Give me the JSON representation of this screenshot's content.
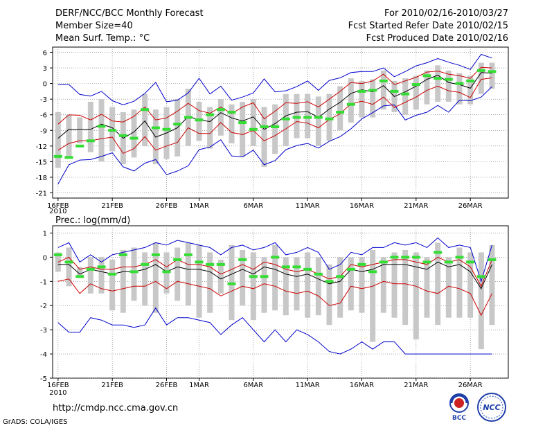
{
  "header": {
    "title": "DERF/NCC/BCC Monthly Forecast",
    "member_size": "Member Size=40",
    "variable": "Mean Surf. Temp.: °C",
    "period": "For 2010/02/16-2010/03/27",
    "start_date": "Fcst Started Refer Date 2010/02/15",
    "produced_date": "Fcst Produced Date 2010/02/16"
  },
  "footer": {
    "url": "http://cmdp.ncc.cma.gov.cn",
    "credit": "GrADS: COLA/IGES",
    "logo_left_text": "BCC",
    "logo_right_text": "NCC"
  },
  "colors": {
    "max_line": "#0000cc",
    "min_line": "#0000cc",
    "spread_line": "#cc0000",
    "mean_line": "#000000",
    "box": "#c8c8c8",
    "forecast_marker": "#33dd33",
    "logo_blue": "#1f3fa8",
    "logo_red": "#cc2222"
  },
  "chart_data": [
    {
      "type": "line",
      "title": "Mean Surf. Temp.: °C",
      "x_tick_labels": [
        "16FEB",
        "21FEB",
        "26FEB",
        "1MAR",
        "6MAR",
        "11MAR",
        "16MAR",
        "21MAR",
        "26MAR"
      ],
      "x_tick_days": [
        0,
        5,
        10,
        13,
        18,
        23,
        28,
        33,
        38
      ],
      "x_sub_label": "2010",
      "ylim": [
        -22,
        7
      ],
      "y_ticks": [
        6,
        3,
        0,
        -3,
        -6,
        -9,
        -12,
        -15,
        -18,
        -21
      ],
      "y_tick_labels": [
        "6",
        "3",
        "0",
        "-3",
        "-6",
        "-9",
        "-12",
        "-15",
        "-18",
        "-21"
      ],
      "series": [
        {
          "name": "max",
          "values": [
            -0.2,
            -0.2,
            -2.1,
            -2.4,
            -1.5,
            -3.3,
            -4.1,
            -3.4,
            -1.9,
            0.2,
            -3.5,
            -3.2,
            -1.8,
            1.0,
            -2.0,
            -0.5,
            -3.2,
            -2.6,
            -1.8,
            0.9,
            -1.6,
            -1.4,
            -0.6,
            0.5,
            -1.3,
            0.6,
            1.1,
            2.1,
            2.3,
            2.3,
            3.0,
            1.3,
            2.3,
            3.4,
            4.0,
            4.8,
            4.1,
            3.5,
            2.7,
            5.6,
            4.9
          ]
        },
        {
          "name": "spread_high",
          "values": [
            -7.8,
            -6.0,
            -6.1,
            -7.0,
            -5.9,
            -7.2,
            -7.4,
            -6.3,
            -4.5,
            -7.0,
            -6.6,
            -5.3,
            -3.8,
            -5.2,
            -5.7,
            -4.5,
            -5.8,
            -4.5,
            -3.7,
            -6.8,
            -5.3,
            -3.7,
            -3.8,
            -3.5,
            -4.5,
            -3.0,
            -1.5,
            0.2,
            0.0,
            0.5,
            1.8,
            -0.2,
            0.5,
            1.2,
            2.2,
            2.4,
            1.8,
            1.5,
            1.0,
            3.1,
            3.0
          ]
        },
        {
          "name": "mean",
          "values": [
            -10.5,
            -8.8,
            -8.8,
            -8.8,
            -7.8,
            -8.5,
            -10.5,
            -9.3,
            -7.2,
            -10.3,
            -9.5,
            -8.5,
            -6.3,
            -7.0,
            -7.3,
            -5.6,
            -6.6,
            -7.2,
            -6.4,
            -8.8,
            -7.7,
            -6.2,
            -5.5,
            -5.4,
            -6.5,
            -4.9,
            -3.6,
            -1.9,
            -1.2,
            -1.6,
            -0.4,
            -2.5,
            -1.6,
            -0.5,
            0.8,
            1.6,
            0.2,
            -0.2,
            -0.9,
            2.1,
            2.0
          ]
        },
        {
          "name": "spread_low",
          "values": [
            -12.8,
            -11.5,
            -11.0,
            -11.0,
            -10.6,
            -10.3,
            -13.4,
            -12.5,
            -10.2,
            -12.8,
            -12.0,
            -11.3,
            -8.5,
            -9.6,
            -9.6,
            -7.5,
            -9.4,
            -9.8,
            -9.0,
            -11.0,
            -10.0,
            -8.7,
            -7.3,
            -7.6,
            -8.5,
            -6.9,
            -5.8,
            -3.9,
            -3.4,
            -4.0,
            -2.6,
            -4.6,
            -3.6,
            -2.6,
            -1.3,
            -0.5,
            -1.4,
            -1.7,
            -2.7,
            0.8,
            1.1
          ]
        },
        {
          "name": "min",
          "values": [
            -19.3,
            -15.6,
            -14.7,
            -14.6,
            -14.0,
            -13.3,
            -16.0,
            -16.8,
            -15.3,
            -14.6,
            -17.5,
            -16.8,
            -15.8,
            -12.7,
            -12.2,
            -10.8,
            -13.9,
            -14.1,
            -12.8,
            -15.6,
            -14.8,
            -12.7,
            -11.9,
            -11.5,
            -12.4,
            -11.1,
            -10.2,
            -8.7,
            -6.8,
            -5.6,
            -4.3,
            -4.1,
            -7.0,
            -6.1,
            -5.5,
            -4.2,
            -5.5,
            -3.2,
            -3.3,
            -2.6,
            -0.6
          ]
        },
        {
          "name": "box_low",
          "values": [
            -16.2,
            -14.0,
            -11.5,
            -13.2,
            -15.0,
            -13.0,
            -15.5,
            -14.2,
            -12.0,
            -15.5,
            -14.5,
            -14.0,
            -12.0,
            -11.0,
            -12.5,
            -10.0,
            -11.5,
            -14.0,
            -12.0,
            -16.0,
            -13.5,
            -12.0,
            -10.5,
            -10.5,
            -12.0,
            -11.0,
            -9.0,
            -7.5,
            -6.5,
            -6.5,
            -5.0,
            -5.5,
            -6.0,
            -5.0,
            -4.0,
            -3.5,
            -3.5,
            -4.0,
            -4.0,
            -2.0,
            -1.0
          ]
        },
        {
          "name": "box_high",
          "values": [
            -5.5,
            -6.0,
            -6.5,
            -3.5,
            -3.0,
            -4.5,
            -5.5,
            -5.0,
            -2.0,
            -5.0,
            -4.5,
            -3.0,
            -1.0,
            -3.5,
            -4.5,
            -3.0,
            -4.0,
            -3.5,
            -3.0,
            -4.5,
            -4.0,
            -2.0,
            -2.0,
            -2.0,
            -2.5,
            -2.0,
            -0.5,
            1.0,
            0.5,
            0.8,
            2.5,
            0.5,
            1.0,
            1.5,
            2.5,
            3.5,
            2.5,
            2.0,
            1.5,
            4.0,
            4.0
          ]
        },
        {
          "name": "forecast",
          "values": [
            -14.0,
            -14.2,
            -12.0,
            -11.0,
            -8.2,
            -9.0,
            -10.0,
            -10.5,
            -5.0,
            -8.5,
            -8.8,
            -7.8,
            -6.5,
            -7.0,
            -6.0,
            -5.0,
            -5.5,
            -7.5,
            -8.8,
            -8.3,
            -8.3,
            -6.8,
            -6.5,
            -6.5,
            -6.5,
            -6.8,
            -5.5,
            -4.0,
            -1.5,
            -1.3,
            0.5,
            -1.5,
            -2.0,
            -0.2,
            1.5,
            1.0,
            0.8,
            0.0,
            0.5,
            2.5,
            2.3
          ]
        }
      ]
    },
    {
      "type": "line",
      "title": "Prec.: log(mm/d)",
      "x_tick_labels": [
        "16FEB",
        "21FEB",
        "26FEB",
        "1MAR",
        "6MAR",
        "11MAR",
        "16MAR",
        "21MAR",
        "26MAR"
      ],
      "x_tick_days": [
        0,
        5,
        10,
        13,
        18,
        23,
        28,
        33,
        38
      ],
      "x_sub_label": "2010",
      "ylim": [
        -5,
        1.3
      ],
      "y_ticks": [
        1,
        0,
        -1,
        -2,
        -3,
        -4,
        -5
      ],
      "y_tick_labels": [
        "1",
        "0",
        "-1",
        "-2",
        "-3",
        "-4",
        "-5"
      ],
      "series": [
        {
          "name": "max",
          "values": [
            0.4,
            0.6,
            -0.2,
            0.1,
            -0.2,
            0.1,
            0.2,
            0.3,
            0.4,
            0.6,
            0.5,
            0.7,
            0.6,
            0.5,
            0.4,
            0.1,
            0.4,
            0.5,
            0.3,
            0.4,
            0.6,
            0.1,
            0.2,
            0.4,
            0.2,
            -0.5,
            -0.3,
            0.2,
            0.1,
            0.4,
            0.4,
            0.6,
            0.5,
            0.6,
            0.4,
            0.8,
            0.4,
            0.5,
            0.4,
            -1.0,
            0.5
          ]
        },
        {
          "name": "spread_high",
          "values": [
            -0.2,
            0.0,
            -0.5,
            -0.4,
            -0.5,
            -0.5,
            -0.4,
            -0.4,
            -0.3,
            -0.1,
            -0.4,
            -0.1,
            -0.3,
            -0.3,
            -0.4,
            -0.7,
            -0.5,
            -0.3,
            -0.5,
            -0.2,
            -0.3,
            -0.5,
            -0.6,
            -0.5,
            -0.7,
            -0.9,
            -0.8,
            -0.3,
            -0.4,
            -0.3,
            -0.2,
            -0.1,
            -0.1,
            -0.2,
            -0.3,
            0.0,
            -0.2,
            -0.1,
            -0.4,
            -1.2,
            -0.1
          ]
        },
        {
          "name": "mean",
          "values": [
            -0.3,
            -0.3,
            -0.7,
            -0.5,
            -0.6,
            -0.7,
            -0.6,
            -0.6,
            -0.5,
            -0.3,
            -0.6,
            -0.4,
            -0.5,
            -0.5,
            -0.6,
            -0.9,
            -0.7,
            -0.5,
            -0.7,
            -0.4,
            -0.5,
            -0.7,
            -0.8,
            -0.7,
            -0.9,
            -1.1,
            -1.0,
            -0.5,
            -0.6,
            -0.5,
            -0.3,
            -0.3,
            -0.3,
            -0.4,
            -0.5,
            -0.2,
            -0.4,
            -0.3,
            -0.6,
            -1.3,
            -0.3
          ]
        },
        {
          "name": "spread_low",
          "values": [
            -1.0,
            -0.9,
            -1.5,
            -1.1,
            -1.3,
            -1.4,
            -1.3,
            -1.2,
            -1.2,
            -1.0,
            -1.3,
            -1.0,
            -1.1,
            -1.2,
            -1.3,
            -1.6,
            -1.4,
            -1.2,
            -1.3,
            -1.1,
            -1.2,
            -1.4,
            -1.5,
            -1.4,
            -1.6,
            -2.0,
            -1.9,
            -1.2,
            -1.3,
            -1.2,
            -1.0,
            -1.1,
            -1.1,
            -1.2,
            -1.4,
            -1.5,
            -1.2,
            -1.3,
            -1.5,
            -2.4,
            -1.5
          ]
        },
        {
          "name": "min",
          "values": [
            -2.7,
            -3.1,
            -3.1,
            -2.5,
            -2.6,
            -2.8,
            -2.8,
            -2.9,
            -2.8,
            -2.1,
            -2.8,
            -2.5,
            -2.5,
            -2.6,
            -2.7,
            -3.2,
            -2.8,
            -2.5,
            -3.0,
            -3.5,
            -3.0,
            -3.5,
            -3.0,
            -3.2,
            -3.5,
            -3.9,
            -4.0,
            -3.8,
            -3.5,
            -3.8,
            -3.5,
            -3.5,
            -4.0,
            -4.0,
            -4.0,
            -4.0,
            -4.0,
            -4.0,
            -4.0,
            -4.0,
            -4.0
          ]
        },
        {
          "name": "box_low",
          "values": [
            -0.6,
            -1.2,
            -0.8,
            -1.5,
            -1.5,
            -2.2,
            -2.3,
            -1.8,
            -2.0,
            -2.3,
            -1.5,
            -1.8,
            -2.0,
            -2.5,
            -2.3,
            -1.5,
            -2.6,
            -2.0,
            -2.6,
            -2.3,
            -2.2,
            -2.4,
            -2.2,
            -2.5,
            -2.4,
            -2.8,
            -2.5,
            -2.2,
            -2.3,
            -3.5,
            -2.3,
            -2.5,
            -2.8,
            -3.4,
            -2.5,
            -2.8,
            -2.5,
            -2.5,
            -2.5,
            -3.8,
            -2.8
          ]
        },
        {
          "name": "box_high",
          "values": [
            0.2,
            0.4,
            -0.4,
            0.0,
            0.0,
            -0.1,
            0.3,
            0.4,
            0.2,
            0.6,
            0.2,
            0.4,
            0.6,
            0.5,
            0.2,
            -0.1,
            0.5,
            0.3,
            0.2,
            0.0,
            0.5,
            0.0,
            0.0,
            0.2,
            0.0,
            -0.3,
            0.0,
            0.0,
            0.0,
            0.3,
            0.0,
            0.2,
            0.3,
            0.2,
            0.0,
            0.6,
            0.0,
            0.4,
            0.2,
            0.2,
            0.5
          ]
        },
        {
          "name": "forecast",
          "values": [
            0.1,
            -0.2,
            -0.8,
            -0.5,
            -0.4,
            -0.7,
            0.1,
            -0.6,
            -0.3,
            0.1,
            -0.6,
            -0.1,
            0.1,
            -0.2,
            -0.3,
            -0.3,
            -1.1,
            -0.1,
            -0.8,
            -0.8,
            0.0,
            -0.4,
            -0.4,
            -0.5,
            -0.7,
            -1.0,
            -0.8,
            -0.5,
            -0.3,
            -0.6,
            -0.2,
            0.0,
            0.0,
            0.0,
            -0.2,
            0.2,
            -0.2,
            0.0,
            -0.2,
            -0.8,
            -0.1
          ]
        }
      ]
    }
  ]
}
